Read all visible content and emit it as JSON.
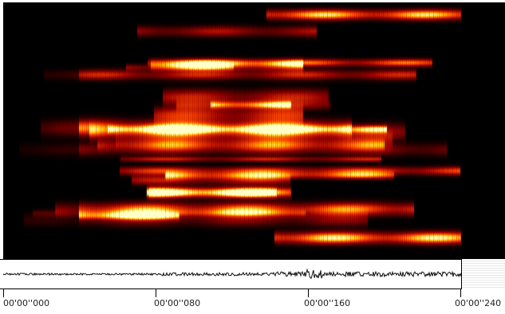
{
  "timeline": {
    "labels": [
      "00'00''000",
      "00'00''080",
      "00'00''160",
      "00'00''240"
    ]
  },
  "colors": {
    "spectrogram_low": "#000000",
    "spectrogram_mid": "#ff4400",
    "spectrogram_high": "#ffffcc",
    "waveform": "#111111"
  }
}
